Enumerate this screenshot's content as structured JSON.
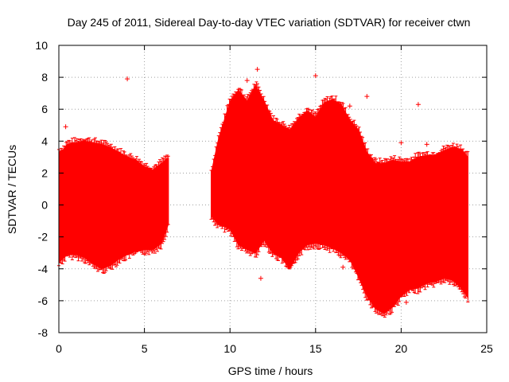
{
  "chart_data": {
    "type": "scatter",
    "title": "Day 245 of 2011, Sidereal Day-to-day VTEC variation (SDTVAR) for receiver ctwn",
    "xlabel": "GPS time / hours",
    "ylabel": "SDTVAR / TECUs",
    "xlim": [
      0,
      25
    ],
    "ylim": [
      -8,
      10
    ],
    "x_ticks": [
      0,
      5,
      10,
      15,
      20,
      25
    ],
    "y_ticks": [
      -8,
      -6,
      -4,
      -2,
      0,
      2,
      4,
      6,
      8,
      10
    ],
    "x_tick_labels": [
      "0",
      "5",
      "10",
      "15",
      "20",
      "25"
    ],
    "y_tick_labels": [
      "-8",
      "-6",
      "-4",
      "-2",
      "0",
      "2",
      "4",
      "6",
      "8",
      "10"
    ],
    "grid": true,
    "color": "#ff0000",
    "series": [
      {
        "name": "SDTVAR",
        "envelope": {
          "x": [
            0.0,
            0.3,
            0.5,
            1.0,
            1.5,
            2.0,
            2.5,
            3.0,
            3.5,
            4.0,
            4.5,
            5.0,
            5.5,
            6.0,
            6.3,
            6.4
          ],
          "upper": [
            3.3,
            3.5,
            3.8,
            3.9,
            4.0,
            3.9,
            3.8,
            3.6,
            3.3,
            3.0,
            2.8,
            2.4,
            2.2,
            2.6,
            2.9,
            2.9
          ],
          "lower": [
            -3.6,
            -3.3,
            -3.1,
            -3.1,
            -3.3,
            -3.7,
            -4.0,
            -3.8,
            -3.4,
            -3.1,
            -2.9,
            -2.8,
            -2.8,
            -2.4,
            -1.5,
            -1.2
          ]
        },
        "envelope2": {
          "x": [
            8.9,
            9.3,
            10.0,
            10.5,
            11.0,
            11.5,
            12.0,
            12.5,
            13.0,
            13.5,
            14.0,
            14.5,
            15.0,
            15.5,
            16.0,
            16.5,
            17.0,
            17.5,
            18.0,
            18.5,
            19.0,
            19.5,
            20.0,
            20.5,
            21.0,
            21.5,
            22.0,
            22.5,
            23.0,
            23.5,
            23.9
          ],
          "upper": [
            2.0,
            4.0,
            6.5,
            7.2,
            6.5,
            7.5,
            6.5,
            5.3,
            5.0,
            4.7,
            5.4,
            5.9,
            5.5,
            6.4,
            6.6,
            6.3,
            5.3,
            4.7,
            3.3,
            2.6,
            2.6,
            2.8,
            2.7,
            2.7,
            3.0,
            3.1,
            3.1,
            3.4,
            3.6,
            3.5,
            3.0
          ],
          "lower": [
            -0.7,
            -1.2,
            -1.5,
            -2.5,
            -2.8,
            -3.0,
            -2.2,
            -3.0,
            -3.3,
            -4.0,
            -3.0,
            -2.5,
            -2.4,
            -2.5,
            -2.7,
            -3.0,
            -3.4,
            -4.5,
            -5.7,
            -6.5,
            -6.8,
            -6.4,
            -5.7,
            -5.3,
            -5.2,
            -4.9,
            -4.8,
            -4.6,
            -4.7,
            -5.2,
            -5.8
          ]
        },
        "outliers": {
          "x": [
            0.4,
            4.0,
            11.0,
            11.6,
            11.8,
            15.0,
            16.6,
            17.0,
            18.0,
            18.2,
            20.0,
            20.3,
            21.0,
            21.5
          ],
          "y": [
            4.9,
            7.9,
            7.8,
            8.5,
            -4.6,
            8.1,
            -3.9,
            6.2,
            6.8,
            -4.6,
            3.9,
            -6.1,
            6.3,
            3.8
          ]
        }
      }
    ]
  }
}
